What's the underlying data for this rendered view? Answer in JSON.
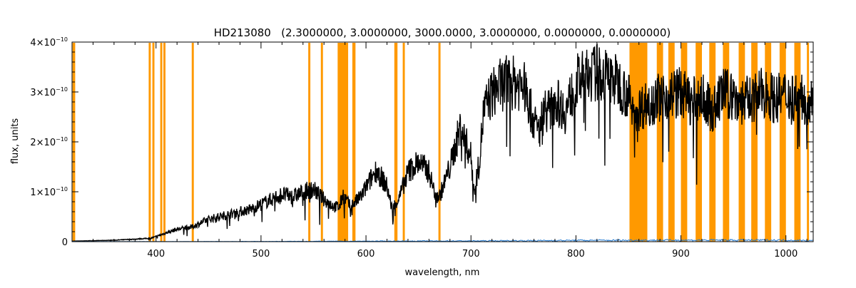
{
  "chart_data": {
    "type": "line",
    "title": "HD213080   (2.3000000, 3.0000000, 3000.0000, 3.0000000, 0.0000000, 0.0000000)",
    "xlabel": "wavelength, nm",
    "ylabel": "flux, units",
    "xlim": [
      320,
      1026
    ],
    "ylim": [
      0,
      4e-10
    ],
    "x_ticks": [
      400,
      500,
      600,
      700,
      800,
      900,
      1000
    ],
    "x_tick_labels": [
      "400",
      "500",
      "600",
      "700",
      "800",
      "900",
      "1000"
    ],
    "y_ticks": [
      0,
      1e-10,
      2e-10,
      3e-10,
      4e-10
    ],
    "y_tick_labels": [
      {
        "mantissa": "0",
        "exp": ""
      },
      {
        "mantissa": "1×10",
        "exp": "−10"
      },
      {
        "mantissa": "2×10",
        "exp": "−10"
      },
      {
        "mantissa": "3×10",
        "exp": "−10"
      },
      {
        "mantissa": "4×10",
        "exp": "−10"
      }
    ],
    "grid": false,
    "colors": {
      "flux": "#000000",
      "error": "#1f78d1",
      "mask": "#ff9900"
    },
    "series": [
      {
        "key": "flux",
        "x": [
          320,
          340,
          360,
          380,
          395,
          400,
          410,
          420,
          435,
          450,
          470,
          490,
          500,
          510,
          520,
          530,
          540,
          550,
          560,
          570,
          575,
          578,
          585,
          595,
          610,
          620,
          625,
          632,
          640,
          650,
          660,
          665,
          670,
          680,
          690,
          700,
          703,
          708,
          712,
          718,
          725,
          735,
          750,
          760,
          765,
          770,
          775,
          780,
          790,
          800,
          810,
          820,
          830,
          840,
          850,
          855,
          870,
          880,
          890,
          900,
          910,
          920,
          930,
          940,
          950,
          960,
          970,
          980,
          990,
          1000,
          1010,
          1020,
          1026
        ],
        "y": [
          1e-12,
          2e-12,
          3e-12,
          5e-12,
          7e-12,
          1e-11,
          1.8e-11,
          2.5e-11,
          3e-11,
          4.5e-11,
          5.5e-11,
          6.5e-11,
          7.5e-11,
          8.5e-11,
          9.5e-11,
          9e-11,
          1e-10,
          1.05e-10,
          8.5e-11,
          7e-11,
          7e-11,
          9.5e-11,
          7e-11,
          9e-11,
          1.45e-10,
          1.1e-10,
          6.5e-11,
          9e-11,
          1.4e-10,
          1.6e-10,
          1.4e-10,
          1e-10,
          9e-11,
          1.5e-10,
          2.3e-10,
          1.7e-10,
          1e-10,
          1.6e-10,
          2.6e-10,
          2.9e-10,
          3.1e-10,
          3.2e-10,
          3.15e-10,
          2.4e-10,
          2.2e-10,
          2.7e-10,
          2.6e-10,
          2.85e-10,
          2.6e-10,
          3.2e-10,
          3.3e-10,
          3.4e-10,
          3.3e-10,
          3.2e-10,
          2.9e-10,
          2.6e-10,
          2.8e-10,
          2.9e-10,
          2.95e-10,
          3e-10,
          2.8e-10,
          2.9e-10,
          2.6e-10,
          3e-10,
          2.9e-10,
          2.8e-10,
          2.9e-10,
          3e-10,
          2.85e-10,
          2.95e-10,
          2.9e-10,
          2.8e-10,
          3e-10
        ]
      },
      {
        "key": "error",
        "x": [
          320,
          400,
          500,
          600,
          700,
          800,
          900,
          1000,
          1026
        ],
        "y": [
          2e-13,
          2e-13,
          5e-13,
          1e-12,
          1.5e-12,
          2.5e-12,
          3e-12,
          3e-12,
          2e-12
        ]
      }
    ],
    "masked_regions": [
      [
        320.5,
        323
      ],
      [
        393,
        395
      ],
      [
        396.5,
        398.5
      ],
      [
        404,
        406
      ],
      [
        407,
        409
      ],
      [
        434,
        436
      ],
      [
        545,
        547
      ],
      [
        557,
        559
      ],
      [
        573,
        583
      ],
      [
        587,
        590
      ],
      [
        627,
        630
      ],
      [
        635,
        637
      ],
      [
        669,
        671
      ],
      [
        851,
        868
      ],
      [
        877,
        883
      ],
      [
        888,
        894
      ],
      [
        900,
        906
      ],
      [
        914,
        920
      ],
      [
        927,
        933
      ],
      [
        940,
        946
      ],
      [
        955,
        961
      ],
      [
        967,
        973
      ],
      [
        980,
        986
      ],
      [
        994,
        1000
      ],
      [
        1008,
        1014
      ],
      [
        1020,
        1022
      ]
    ]
  }
}
